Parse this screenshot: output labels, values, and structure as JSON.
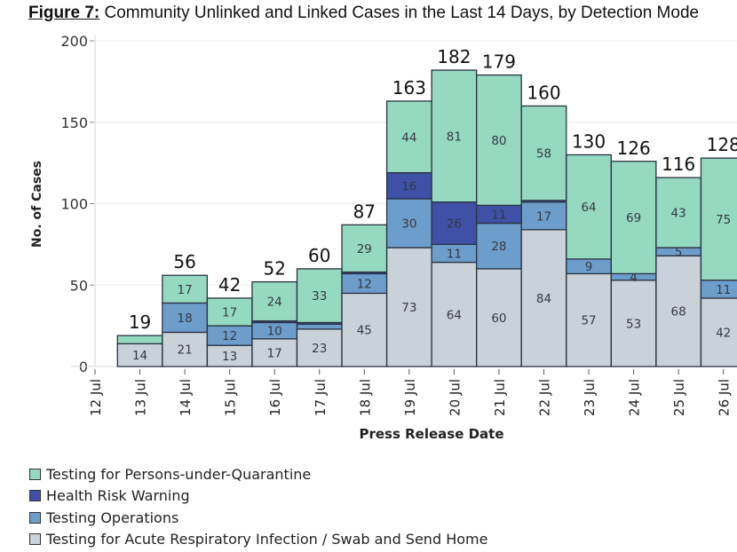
{
  "figure": {
    "number_label": "Figure 7:",
    "title_text": " Community Unlinked and Linked Cases in the Last 14 Days, by Detection Mode"
  },
  "chart_data": {
    "type": "bar",
    "stacked": true,
    "title": "Figure 7: Community Unlinked and Linked Cases in the Last 14 Days, by Detection Mode",
    "xlabel": "Press Release Date",
    "ylabel": "No. of Cases",
    "ylim": [
      0,
      200
    ],
    "yticks": [
      0,
      50,
      100,
      150,
      200
    ],
    "grid": true,
    "legend_position": "bottom-left",
    "categories": [
      "12 Jul",
      "13 Jul",
      "14 Jul",
      "15 Jul",
      "16 Jul",
      "17 Jul",
      "18 Jul",
      "19 Jul",
      "20 Jul",
      "21 Jul",
      "22 Jul",
      "23 Jul",
      "24 Jul",
      "25 Jul",
      "26 Jul"
    ],
    "totals": [
      null,
      19,
      56,
      42,
      52,
      60,
      87,
      163,
      182,
      179,
      160,
      130,
      126,
      116,
      128
    ],
    "series": [
      {
        "name": "Testing for Acute Respiratory Infection / Swab and Send Home",
        "color": "#c9d1d9",
        "values": [
          0,
          14,
          21,
          13,
          17,
          23,
          45,
          73,
          64,
          60,
          84,
          57,
          53,
          68,
          42
        ],
        "labels": [
          null,
          "14",
          "21",
          "13",
          "17",
          "23",
          "45",
          "73",
          "64",
          "60",
          "84",
          "57",
          "53",
          "68",
          "42"
        ]
      },
      {
        "name": "Testing Operations",
        "color": "#6d9dcb",
        "values": [
          0,
          0,
          18,
          12,
          10,
          3,
          12,
          30,
          11,
          28,
          17,
          9,
          4,
          5,
          11
        ],
        "labels": [
          null,
          null,
          "18",
          "12",
          "10",
          null,
          "12",
          "30",
          "11",
          "28",
          "17",
          "9",
          "4",
          "5",
          "11"
        ]
      },
      {
        "name": "Health Risk Warning",
        "color": "#3e51a6",
        "values": [
          0,
          0,
          0,
          0,
          1,
          1,
          1,
          16,
          26,
          11,
          1,
          0,
          0,
          0,
          0
        ],
        "labels": [
          null,
          null,
          null,
          null,
          null,
          null,
          null,
          "16",
          "26",
          "11",
          null,
          null,
          null,
          null,
          null
        ]
      },
      {
        "name": "Testing for Persons-under-Quarantine",
        "color": "#95d9c1",
        "values": [
          0,
          5,
          17,
          17,
          24,
          33,
          29,
          44,
          81,
          80,
          58,
          64,
          69,
          43,
          75
        ],
        "labels": [
          null,
          null,
          "17",
          "17",
          "24",
          "33",
          "29",
          "44",
          "81",
          "80",
          "58",
          "64",
          "69",
          "43",
          "75"
        ]
      }
    ]
  },
  "legend": {
    "items": [
      {
        "label": "Testing for Persons-under-Quarantine",
        "color": "#95d9c1"
      },
      {
        "label": "Health Risk Warning",
        "color": "#3e51a6"
      },
      {
        "label": "Testing Operations",
        "color": "#6d9dcb"
      },
      {
        "label": "Testing for Acute Respiratory Infection / Swab and Send Home",
        "color": "#c9d1d9"
      }
    ]
  }
}
